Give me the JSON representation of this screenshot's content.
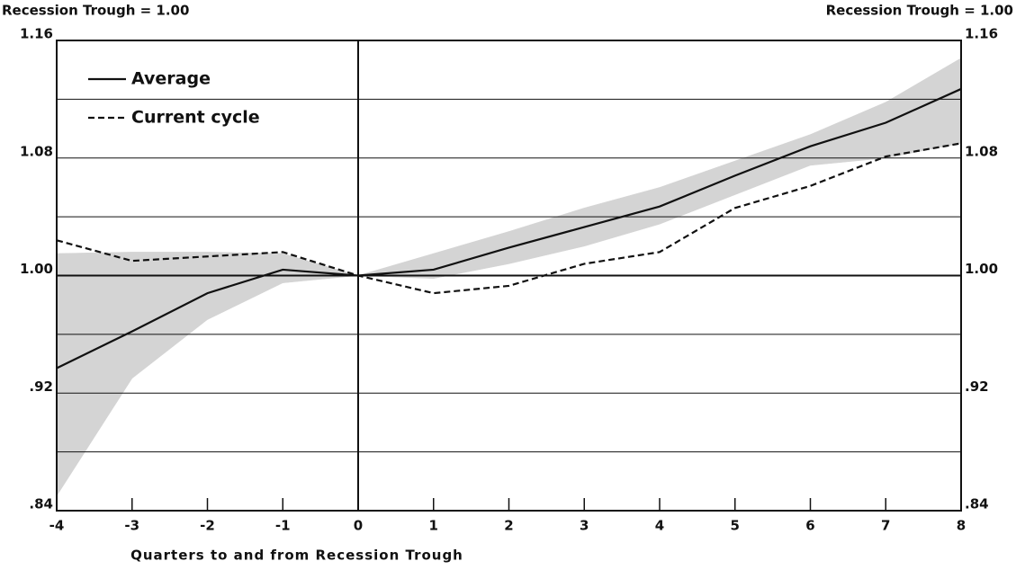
{
  "chart_data": {
    "type": "line",
    "left_note": "Recession Trough = 1.00",
    "right_note": "Recession Trough = 1.00",
    "xlabel": "Quarters to and from Recession Trough",
    "x": [
      -4,
      -3,
      -2,
      -1,
      0,
      1,
      2,
      3,
      4,
      5,
      6,
      7,
      8
    ],
    "xlim": [
      -4,
      8
    ],
    "xticks": [
      -4,
      -3,
      -2,
      -1,
      0,
      1,
      2,
      3,
      4,
      5,
      6,
      7,
      8
    ],
    "ylim": [
      0.84,
      1.16
    ],
    "yticks": [
      {
        "value": 1.16,
        "label": "1.16"
      },
      {
        "value": 1.08,
        "label": "1.08"
      },
      {
        "value": 1.0,
        "label": "1.00"
      },
      {
        "value": 0.92,
        "label": ".92"
      },
      {
        "value": 0.84,
        "label": ".84"
      }
    ],
    "y2lim": [
      0.84,
      1.16
    ],
    "y2ticks": [
      {
        "value": 1.16,
        "label": "1.16"
      },
      {
        "value": 1.08,
        "label": "1.08"
      },
      {
        "value": 1.0,
        "label": "1.00"
      },
      {
        "value": 0.92,
        "label": ".92"
      },
      {
        "value": 0.84,
        "label": ".84"
      }
    ],
    "grid_lines": [
      0.88,
      0.92,
      0.96,
      1.0,
      1.04,
      1.08,
      1.12
    ],
    "grid": true,
    "legend": "upper left",
    "series": [
      {
        "name": "Average",
        "color": "#111111",
        "dash": "solid",
        "values": [
          0.937,
          0.962,
          0.988,
          1.004,
          1.0,
          1.004,
          1.019,
          1.033,
          1.047,
          1.068,
          1.088,
          1.104,
          1.127
        ]
      },
      {
        "name": "Current cycle",
        "color": "#111111",
        "dash": "dashed",
        "values": [
          1.024,
          1.01,
          1.013,
          1.016,
          1.0,
          0.988,
          0.993,
          1.008,
          1.016,
          1.046,
          1.061,
          1.081,
          1.09
        ]
      }
    ],
    "band": {
      "color": "#d4d4d4",
      "low": [
        0.85,
        0.93,
        0.97,
        0.995,
        1.0,
        0.998,
        1.008,
        1.02,
        1.035,
        1.055,
        1.075,
        1.08,
        1.09
      ],
      "high": [
        1.015,
        1.016,
        1.016,
        1.015,
        1.0,
        1.015,
        1.03,
        1.046,
        1.06,
        1.078,
        1.096,
        1.118,
        1.148
      ]
    }
  }
}
